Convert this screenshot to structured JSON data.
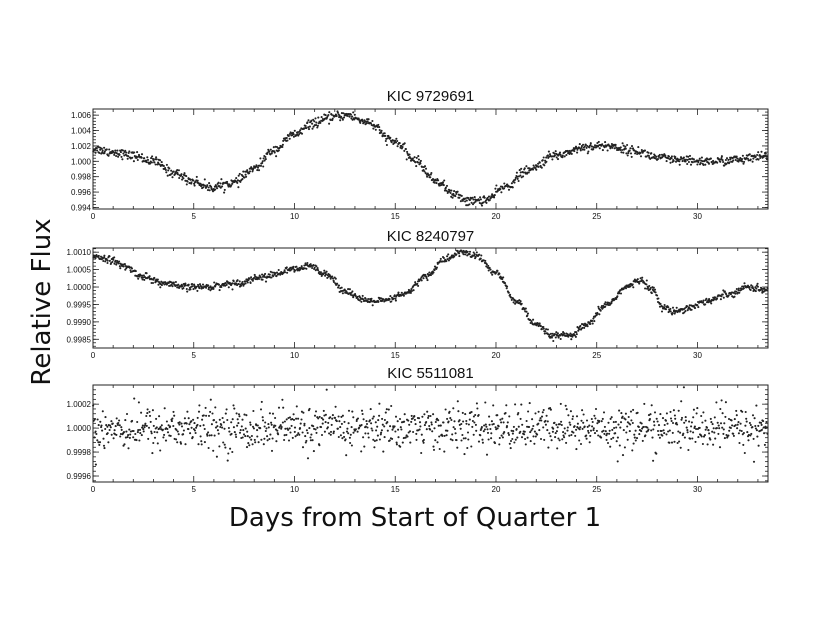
{
  "chart_data": {
    "type": "scatter",
    "xlabel": "Days from Start of Quarter 1",
    "ylabel": "Relative Flux",
    "xlim": [
      0,
      33.5
    ],
    "xticks": [
      0,
      5,
      10,
      15,
      20,
      25,
      30
    ],
    "xtick_labels": [
      "0",
      "5",
      "10",
      "15",
      "20",
      "25",
      "30"
    ],
    "marker_color": "#222222",
    "panels": [
      {
        "title": "KIC 9729691",
        "ylim": [
          0.9938,
          1.0068
        ],
        "yticks": [
          0.994,
          0.996,
          0.998,
          1.0,
          1.002,
          1.004,
          1.006
        ],
        "ytick_labels": [
          "0.994",
          "0.996",
          "0.998",
          "1.000",
          "1.002",
          "1.004",
          "1.006"
        ],
        "scatter": 0.0003,
        "trend": {
          "x": [
            0,
            1,
            2,
            3,
            4,
            5,
            5.8,
            7,
            8,
            9,
            10,
            11,
            12,
            12.6,
            13.5,
            15,
            16,
            17,
            18,
            18.7,
            19.5,
            20.5,
            21.5,
            23,
            24.5,
            25.5,
            27,
            28,
            29,
            30,
            31,
            32,
            33.5
          ],
          "y": [
            1.0016,
            1.0012,
            1.0007,
            1.0,
            0.9985,
            0.9974,
            0.9966,
            0.9972,
            0.999,
            1.0015,
            1.0035,
            1.005,
            1.0058,
            1.006,
            1.0052,
            1.0025,
            1.0001,
            0.9975,
            0.9956,
            0.9948,
            0.995,
            0.9967,
            0.9987,
            1.0008,
            1.0019,
            1.002,
            1.0013,
            1.0005,
            1.0001,
            1.0,
            1.0,
            1.0002,
            1.0006
          ]
        }
      },
      {
        "title": "KIC 8240797",
        "ylim": [
          0.99825,
          1.00112
        ],
        "yticks": [
          0.9985,
          0.999,
          0.9995,
          1.0,
          1.0005,
          1.001
        ],
        "ytick_labels": [
          "0.9985",
          "0.9990",
          "0.9995",
          "1.0000",
          "1.0005",
          "1.0010"
        ],
        "scatter": 5e-05,
        "trend": {
          "x": [
            0,
            0.8,
            1.5,
            2.5,
            3.5,
            4.5,
            5.5,
            7,
            8.5,
            10,
            10.8,
            11.5,
            12.5,
            13.5,
            14.5,
            15.5,
            16.5,
            17.5,
            18.3,
            19,
            20,
            21,
            22,
            22.8,
            23.7,
            24.5,
            25.5,
            26.5,
            27.2,
            27.8,
            28.3,
            28.8,
            29.5,
            30.5,
            31.5,
            32.5,
            33.5
          ],
          "y": [
            1.0009,
            1.0008,
            1.0006,
            1.0003,
            1.0001,
            1.0,
            1.0,
            1.0001,
            1.0003,
            1.0005,
            1.0006,
            1.0004,
            0.9999,
            0.9996,
            0.9996,
            0.9998,
            1.0003,
            1.0008,
            1.001,
            1.0009,
            1.0004,
            0.9996,
            0.9989,
            0.9986,
            0.9986,
            0.9989,
            0.9995,
            1.0,
            1.0002,
            0.9999,
            0.9994,
            0.9993,
            0.9994,
            0.9996,
            0.9998,
            1.0,
            0.9999
          ]
        }
      },
      {
        "title": "KIC 5511081",
        "ylim": [
          0.99955,
          1.00036
        ],
        "yticks": [
          0.9996,
          0.9998,
          1.0,
          1.0002
        ],
        "ytick_labels": [
          "0.9996",
          "0.9998",
          "1.0000",
          "1.0002"
        ],
        "scatter": 9e-05,
        "trend": {
          "x": [
            0,
            33.5
          ],
          "y": [
            1.0,
            1.0
          ]
        }
      }
    ]
  }
}
